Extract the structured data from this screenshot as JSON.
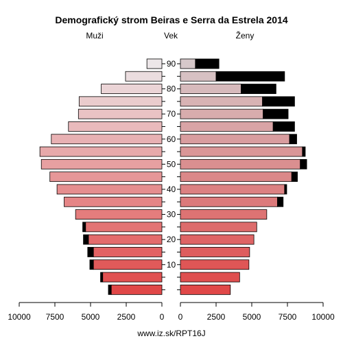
{
  "chart_data": {
    "type": "bar",
    "title": "Demografický strom Beiras e Serra da Estrela 2014",
    "left_label": "Muži",
    "center_label": "Vek",
    "right_label": "Ženy",
    "footer": "www.iz.sk/RPT16J",
    "xlim": [
      0,
      10000
    ],
    "x_ticks": [
      0,
      2500,
      5000,
      7500,
      10000
    ],
    "x_tick_labels_left": [
      "10000",
      "7500",
      "5000",
      "2500",
      "0"
    ],
    "x_tick_labels_right": [
      "0",
      "2500",
      "5000",
      "7500",
      "10000"
    ],
    "age_ticks": [
      "10",
      "20",
      "30",
      "40",
      "50",
      "60",
      "70",
      "80",
      "90"
    ],
    "age_groups": [
      "0-4",
      "5-9",
      "10-14",
      "15-19",
      "20-24",
      "25-29",
      "30-34",
      "35-39",
      "40-44",
      "45-49",
      "50-54",
      "55-59",
      "60-64",
      "65-69",
      "70-74",
      "75-79",
      "80-84",
      "85-89",
      "90+"
    ],
    "male_main": [
      3550,
      4150,
      4800,
      4800,
      5150,
      5350,
      6050,
      6850,
      7350,
      7850,
      8450,
      8550,
      7750,
      6550,
      5850,
      5800,
      4250,
      2550,
      1050
    ],
    "male_excess": [
      200,
      150,
      250,
      400,
      350,
      200,
      0,
      0,
      0,
      0,
      0,
      0,
      0,
      0,
      0,
      0,
      0,
      0,
      0
    ],
    "female_main": [
      3500,
      4150,
      4800,
      4850,
      5150,
      5350,
      6050,
      6800,
      7300,
      7800,
      8400,
      8550,
      7650,
      6500,
      5800,
      5750,
      4250,
      2500,
      1050
    ],
    "female_excess": [
      0,
      0,
      0,
      0,
      0,
      0,
      0,
      400,
      150,
      400,
      450,
      200,
      500,
      1500,
      1750,
      2250,
      2450,
      4800,
      1650
    ]
  }
}
